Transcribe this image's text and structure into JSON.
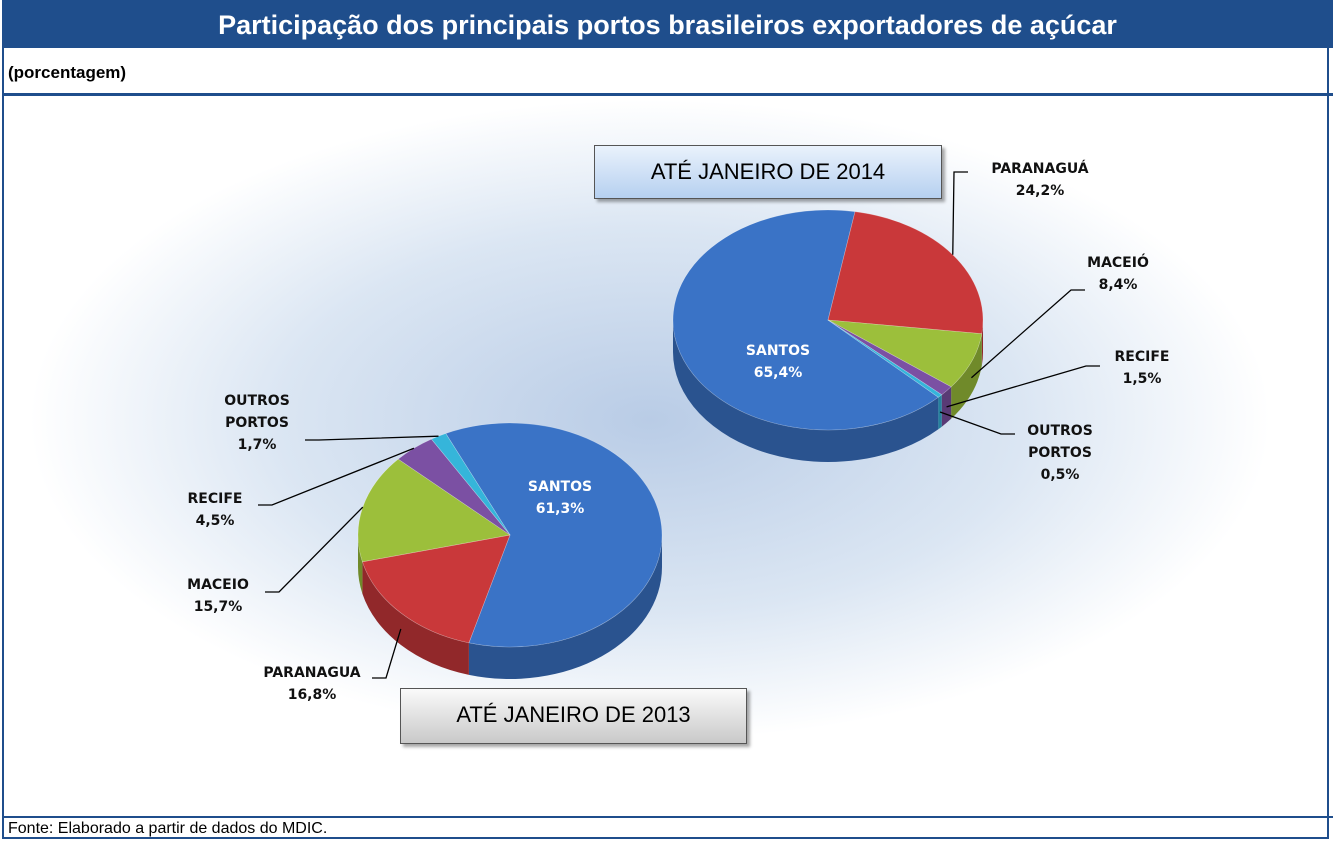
{
  "header": {
    "title": "Participação dos principais portos brasileiros exportadores de açúcar",
    "subtitle": "(porcentagem)"
  },
  "footer": {
    "source": "Fonte: Elaborado a partir de dados do MDIC."
  },
  "chart_data": [
    {
      "type": "pie",
      "title": "ATÉ JANEIRO DE 2014",
      "categories": [
        "SANTOS",
        "PARANAGUÁ",
        "MACEIÓ",
        "RECIFE",
        "OUTROS PORTOS"
      ],
      "values": [
        65.4,
        24.2,
        8.4,
        1.5,
        0.5
      ],
      "value_labels": [
        "65,4%",
        "24,2%",
        "8,4%",
        "1,5%",
        "0,5%"
      ],
      "colors": [
        "#3a73c6",
        "#c9383a",
        "#9cbf3b",
        "#7b50a3",
        "#35b5da"
      ]
    },
    {
      "type": "pie",
      "title": "ATÉ JANEIRO DE 2013",
      "categories": [
        "SANTOS",
        "PARANAGUA",
        "MACEIO",
        "RECIFE",
        "OUTROS PORTOS"
      ],
      "values": [
        61.3,
        16.8,
        15.7,
        4.5,
        1.7
      ],
      "value_labels": [
        "61,3%",
        "16,8%",
        "15,7%",
        "4,5%",
        "1,7%"
      ],
      "colors": [
        "#3a73c6",
        "#c9383a",
        "#9cbf3b",
        "#7b50a3",
        "#35b5da"
      ]
    }
  ]
}
